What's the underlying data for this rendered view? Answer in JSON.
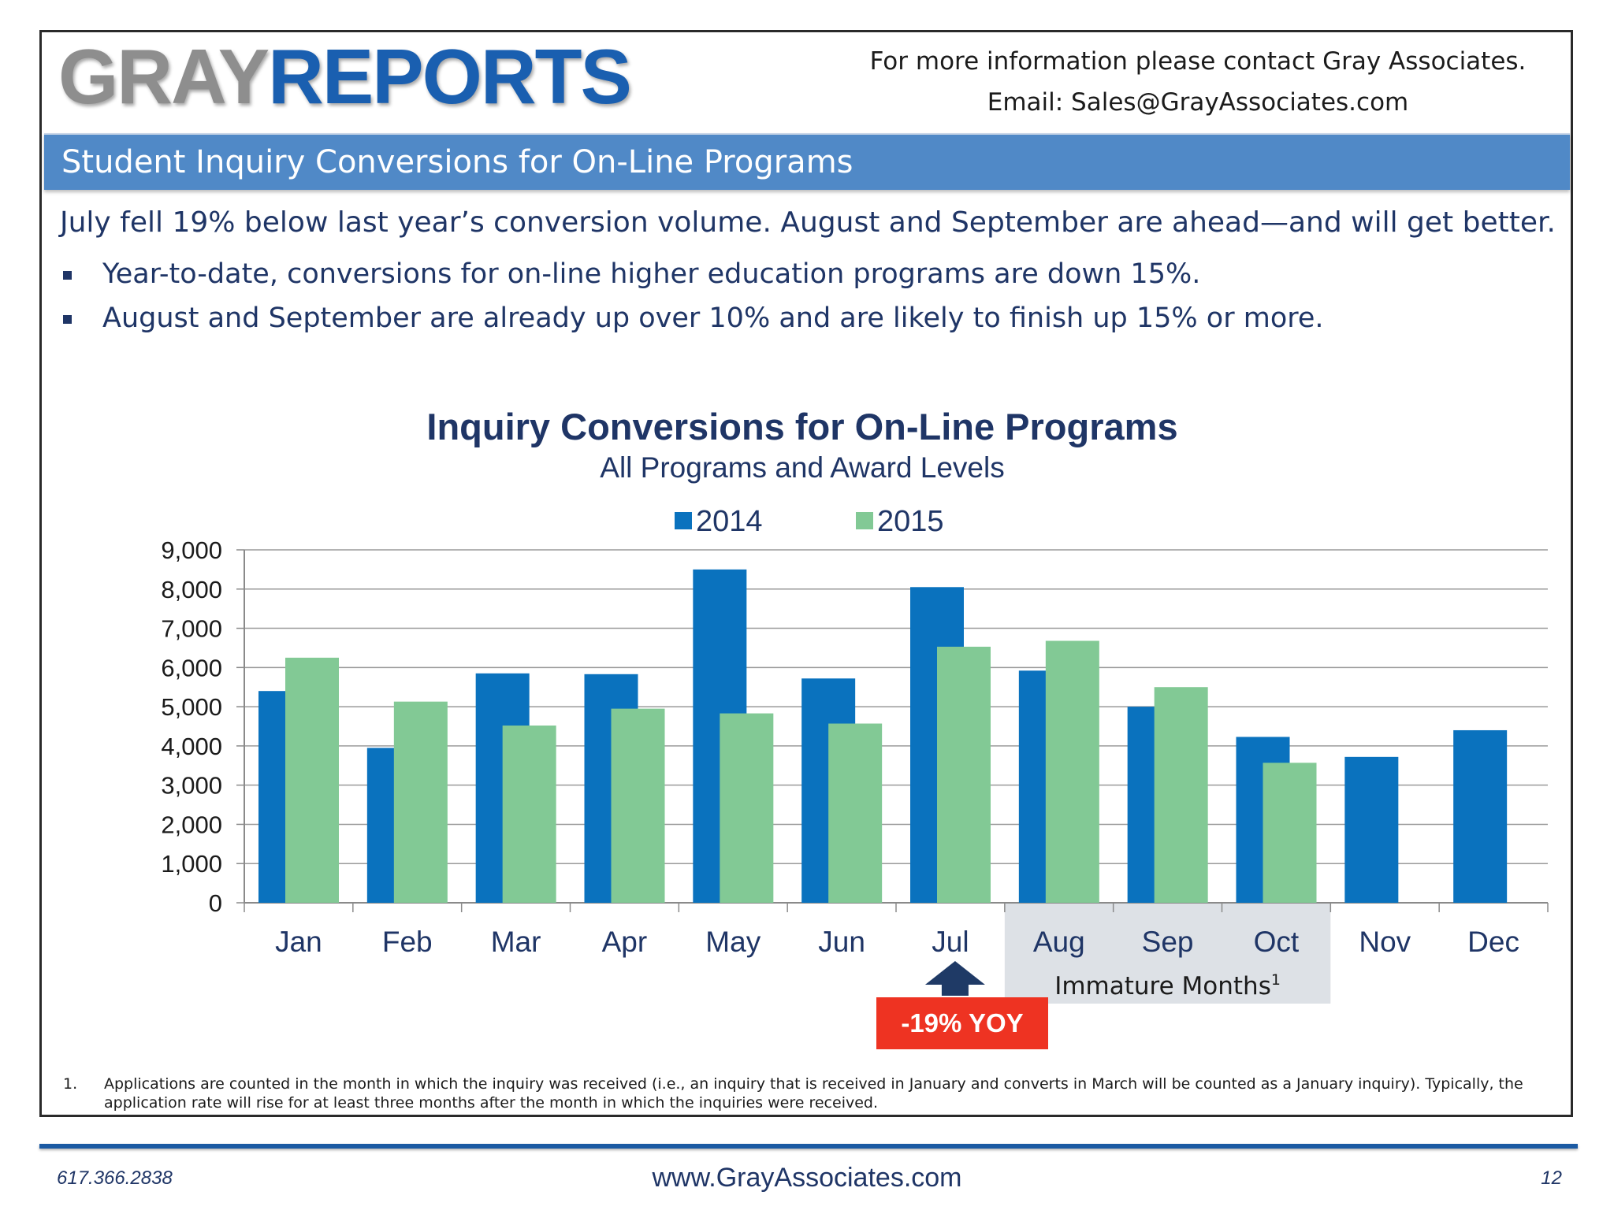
{
  "header": {
    "logo_gray": "GRAY",
    "logo_reports": "REPORTS",
    "contact_line1": "For more information please contact Gray Associates.",
    "contact_line2": "Email:  Sales@GrayAssociates.com"
  },
  "banner": {
    "title": "Student Inquiry Conversions for On-Line Programs"
  },
  "summary": {
    "headline": "July fell 19% below last year’s conversion volume.  August and September are ahead—and will get better.",
    "bullets": [
      "Year-to-date, conversions for on-line higher education programs are down 15%.",
      "August and September are already up over 10% and are likely to finish up 15% or more."
    ]
  },
  "chart_data": {
    "type": "bar",
    "title": "Inquiry Conversions for On-Line Programs",
    "subtitle": "All Programs and Award Levels",
    "categories": [
      "Jan",
      "Feb",
      "Mar",
      "Apr",
      "May",
      "Jun",
      "Jul",
      "Aug",
      "Sep",
      "Oct",
      "Nov",
      "Dec"
    ],
    "series": [
      {
        "name": "2014",
        "color": "#0a72be",
        "values": [
          5400,
          3950,
          5850,
          5830,
          8500,
          5720,
          8050,
          5920,
          5000,
          4230,
          3720,
          4400
        ]
      },
      {
        "name": "2015",
        "color": "#82c995",
        "values": [
          6250,
          5130,
          4520,
          4950,
          4830,
          4570,
          6530,
          6680,
          5500,
          3570,
          null,
          null
        ]
      }
    ],
    "ylim": [
      0,
      9000
    ],
    "yticks": [
      0,
      1000,
      2000,
      3000,
      4000,
      5000,
      6000,
      7000,
      8000,
      9000
    ],
    "ytick_labels": [
      "0",
      "1,000",
      "2,000",
      "3,000",
      "4,000",
      "5,000",
      "6,000",
      "7,000",
      "8,000",
      "9,000"
    ],
    "grid": true,
    "legend": "top-center",
    "annotations": {
      "immature_label": "Immature Months",
      "immature_sup": "1",
      "immature_months": [
        "Aug",
        "Sep",
        "Oct"
      ],
      "yoy_label": "-19% YOY",
      "yoy_month": "Jul",
      "yoy_color": "#ee3322",
      "arrow_color": "#1f3a66"
    }
  },
  "footnote": {
    "number": "1.",
    "text": "Applications are counted in the month in which the inquiry was received (i.e., an inquiry that is received in January and converts in March will be counted as a January inquiry).  Typically, the application rate will rise for at least three months after the month in which the inquiries were received."
  },
  "footer": {
    "phone": "617.366.2838",
    "website": "www.GrayAssociates.com",
    "page": "12"
  }
}
